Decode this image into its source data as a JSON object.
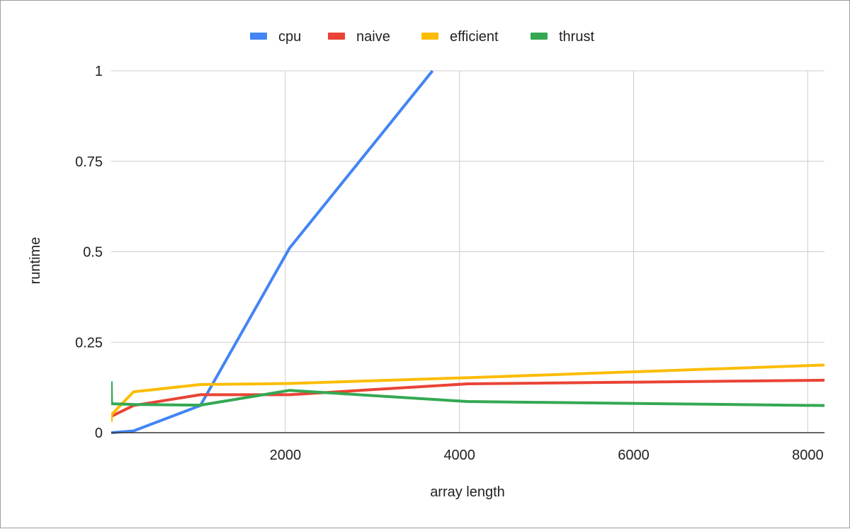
{
  "chart_data": {
    "type": "line",
    "title": "",
    "xlabel": "array length",
    "ylabel": "runtime",
    "xlim": [
      0,
      8192
    ],
    "ylim": [
      0,
      1
    ],
    "x_ticks": [
      2000,
      4000,
      6000,
      8000
    ],
    "x_tick_labels": [
      "2000",
      "4000",
      "6000",
      "8000"
    ],
    "y_ticks": [
      0,
      0.25,
      0.5,
      0.75,
      1
    ],
    "y_tick_labels": [
      "0",
      "0.25",
      "0.5",
      "0.75",
      "1"
    ],
    "grid": true,
    "legend_position": "top-center",
    "series": [
      {
        "name": "cpu",
        "color": "#4285f4",
        "points": [
          [
            0,
            0
          ],
          [
            256,
            0.005
          ],
          [
            1024,
            0.075
          ],
          [
            2048,
            0.51
          ],
          [
            3690,
            1.0
          ]
        ]
      },
      {
        "name": "naive",
        "color": "#ea4335",
        "points": [
          [
            0,
            0.045
          ],
          [
            256,
            0.075
          ],
          [
            1024,
            0.105
          ],
          [
            2048,
            0.105
          ],
          [
            4096,
            0.135
          ],
          [
            8192,
            0.145
          ]
        ]
      },
      {
        "name": "efficient",
        "color": "#fbbc04",
        "points": [
          [
            0,
            0.03
          ],
          [
            4,
            0.05
          ],
          [
            256,
            0.113
          ],
          [
            1024,
            0.133
          ],
          [
            2048,
            0.136
          ],
          [
            4096,
            0.152
          ],
          [
            8192,
            0.187
          ]
        ]
      },
      {
        "name": "thrust",
        "color": "#34a853",
        "points": [
          [
            0,
            0.142
          ],
          [
            4,
            0.08
          ],
          [
            256,
            0.078
          ],
          [
            1024,
            0.076
          ],
          [
            2048,
            0.117
          ],
          [
            4096,
            0.086
          ],
          [
            8192,
            0.075
          ]
        ]
      }
    ]
  }
}
